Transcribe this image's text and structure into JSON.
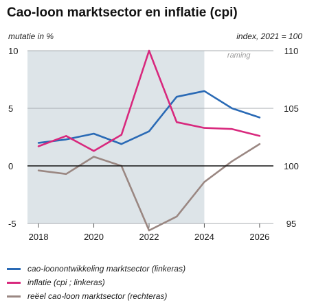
{
  "chart_data": {
    "type": "line",
    "title": "Cao-loon marktsector en inflatie (cpi)",
    "ylabel_left": "mutatie in %",
    "ylabel_right": "index, 2021 = 100",
    "x": [
      2018,
      2019,
      2020,
      2021,
      2022,
      2023,
      2024,
      2025,
      2026
    ],
    "xticks": [
      2018,
      2020,
      2022,
      2024,
      2026
    ],
    "xlim": [
      2017.6,
      2026.5
    ],
    "ylim_left": [
      -5,
      10
    ],
    "yticks_left": [
      -5,
      0,
      5,
      10
    ],
    "ylim_right": [
      95,
      110
    ],
    "yticks_right": [
      95,
      100,
      105,
      110
    ],
    "grid": "horizontal",
    "forecast": {
      "label": "raming",
      "from": 2024
    },
    "legend_position": "bottom",
    "series": [
      {
        "name": "cao-loonontwikkeling marktsector (linkeras)",
        "axis": "left",
        "color": "#2a6ab5",
        "values": [
          2.0,
          2.3,
          2.8,
          1.9,
          3.0,
          6.0,
          6.5,
          5.0,
          4.2
        ]
      },
      {
        "name": "inflatie (cpi ; linkeras)",
        "axis": "left",
        "color": "#d8287d",
        "values": [
          1.7,
          2.6,
          1.3,
          2.7,
          10.0,
          3.8,
          3.3,
          3.2,
          2.6
        ]
      },
      {
        "name": "reëel cao-loon marktsector (rechteras)",
        "axis": "right",
        "color": "#9a8782",
        "values": [
          99.6,
          99.3,
          100.8,
          100.0,
          94.4,
          95.6,
          98.6,
          100.4,
          101.9
        ]
      }
    ]
  }
}
